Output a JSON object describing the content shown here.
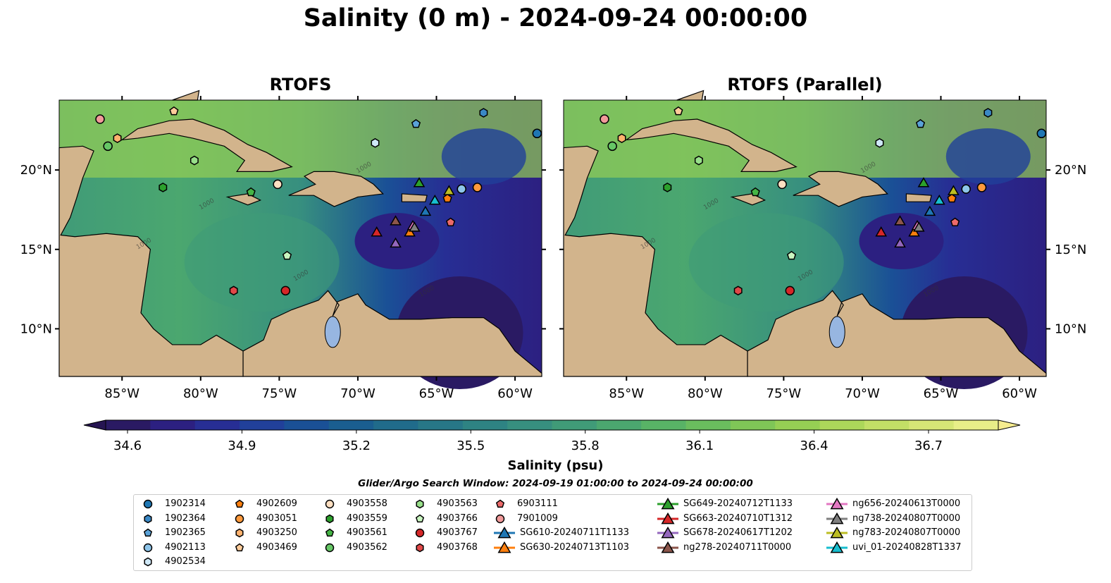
{
  "title": "Salinity (0 m) - 2024-09-24 00:00:00",
  "panels": [
    {
      "title": "RTOFS"
    },
    {
      "title": "RTOFS (Parallel)"
    }
  ],
  "colorbar": {
    "label": "Salinity (psu)",
    "ticks": [
      "34.6",
      "34.9",
      "35.2",
      "35.5",
      "35.8",
      "36.1",
      "36.4",
      "36.7"
    ],
    "range": [
      34.6,
      36.7
    ],
    "extend": "both"
  },
  "search_window": "Glider/Argo Search Window: 2024-09-19 01:00:00 to 2024-09-24 00:00:00",
  "chart_data": {
    "type": "heatmap",
    "title": "Salinity (0 m) - 2024-09-24 00:00:00",
    "xlim": [
      -89,
      -58.3
    ],
    "ylim": [
      7,
      24.4
    ],
    "x_ticks": [
      "85°W",
      "80°W",
      "75°W",
      "70°W",
      "65°W",
      "60°W"
    ],
    "x_tick_values": [
      -85,
      -80,
      -75,
      -70,
      -65,
      -60
    ],
    "y_ticks": [
      "10°N",
      "15°N",
      "20°N"
    ],
    "y_tick_values": [
      10,
      15,
      20
    ],
    "contour_label": "1000",
    "markers": [
      {
        "label": "1902314",
        "shape": "circle",
        "color": "#1f77b4",
        "lon": -58.6,
        "lat": 22.3
      },
      {
        "label": "1902364",
        "shape": "hexagon",
        "color": "#3a88c5",
        "lon": -62.0,
        "lat": 23.6
      },
      {
        "label": "1902365",
        "shape": "pentagon",
        "color": "#5aa2d8",
        "lon": -66.3,
        "lat": 22.9
      },
      {
        "label": "4902113",
        "shape": "circle",
        "color": "#8ec5ea",
        "lon": -63.4,
        "lat": 18.8
      },
      {
        "label": "4902534",
        "shape": "hexagon",
        "color": "#cfe8f7",
        "lon": -68.9,
        "lat": 21.7
      },
      {
        "label": "4902609",
        "shape": "pentagon",
        "color": "#ff7f0e",
        "lon": -64.3,
        "lat": 18.2
      },
      {
        "label": "4903051",
        "shape": "circle",
        "color": "#ff9a3c",
        "lon": -62.4,
        "lat": 18.9
      },
      {
        "label": "4903250",
        "shape": "hexagon",
        "color": "#ffb26e",
        "lon": -85.3,
        "lat": 22.0
      },
      {
        "label": "4903469",
        "shape": "pentagon",
        "color": "#ffcc9a",
        "lon": -81.7,
        "lat": 23.7
      },
      {
        "label": "4903558",
        "shape": "circle",
        "color": "#ffe0c2",
        "lon": -75.1,
        "lat": 19.1
      },
      {
        "label": "4903559",
        "shape": "hexagon",
        "color": "#2ca02c",
        "lon": -82.4,
        "lat": 18.9
      },
      {
        "label": "4903561",
        "shape": "pentagon",
        "color": "#45b545",
        "lon": -76.8,
        "lat": 18.6
      },
      {
        "label": "4903562",
        "shape": "circle",
        "color": "#66c766",
        "lon": -85.9,
        "lat": 21.5
      },
      {
        "label": "4903563",
        "shape": "hexagon",
        "color": "#98df8a",
        "lon": -80.4,
        "lat": 20.6
      },
      {
        "label": "4903766",
        "shape": "pentagon",
        "color": "#c9f5c0",
        "lon": -74.5,
        "lat": 14.6
      },
      {
        "label": "4903767",
        "shape": "circle",
        "color": "#d62728",
        "lon": -74.6,
        "lat": 12.4
      },
      {
        "label": "4903768",
        "shape": "hexagon",
        "color": "#e04848",
        "lon": -77.9,
        "lat": 12.4
      },
      {
        "label": "6903111",
        "shape": "pentagon",
        "color": "#ec6a6a",
        "lon": -64.1,
        "lat": 16.7
      },
      {
        "label": "7901009",
        "shape": "circle",
        "color": "#f19a9a",
        "lon": -86.4,
        "lat": 23.2
      },
      {
        "label": "SG610-20240711T1133",
        "shape": "triangle",
        "color": "#1f77b4",
        "lon": -65.7,
        "lat": 17.4
      },
      {
        "label": "SG630-20240713T1103",
        "shape": "triangle",
        "color": "#ff7f0e",
        "lon": -66.7,
        "lat": 16.1
      },
      {
        "label": "SG649-20240712T1133",
        "shape": "triangle",
        "color": "#2ca02c",
        "lon": -66.1,
        "lat": 19.2
      },
      {
        "label": "SG663-20240710T1312",
        "shape": "triangle",
        "color": "#d62728",
        "lon": -68.8,
        "lat": 16.1
      },
      {
        "label": "SG678-20240617T1202",
        "shape": "triangle",
        "color": "#9467bd",
        "lon": -67.6,
        "lat": 15.4
      },
      {
        "label": "ng278-20240711T0000",
        "shape": "triangle",
        "color": "#8c564b",
        "lon": -67.6,
        "lat": 16.8
      },
      {
        "label": "ng656-20240613T0000",
        "shape": "triangle",
        "color": "#e377c2",
        "lon": -66.5,
        "lat": 16.5
      },
      {
        "label": "ng738-20240807T0000",
        "shape": "triangle",
        "color": "#7f7f7f",
        "lon": -66.4,
        "lat": 16.4
      },
      {
        "label": "ng783-20240807T0000",
        "shape": "triangle",
        "color": "#bcbd22",
        "lon": -64.2,
        "lat": 18.7
      },
      {
        "label": "uvi_01-20240828T1337",
        "shape": "triangle",
        "color": "#17becf",
        "lon": -65.1,
        "lat": 18.1
      }
    ]
  },
  "colors": {
    "land": "#d2b48c",
    "lake": "#97b6e1",
    "cmap": [
      "#2a1a63",
      "#2c2081",
      "#272e94",
      "#21409a",
      "#1a5096",
      "#1a5e90",
      "#206b8b",
      "#277787",
      "#2e8383",
      "#378f7f",
      "#409b78",
      "#4ba76f",
      "#58b366",
      "#6abd5e",
      "#7fc657",
      "#96cf54",
      "#acd75a",
      "#c2df66",
      "#d6e676",
      "#e8ee88"
    ]
  }
}
